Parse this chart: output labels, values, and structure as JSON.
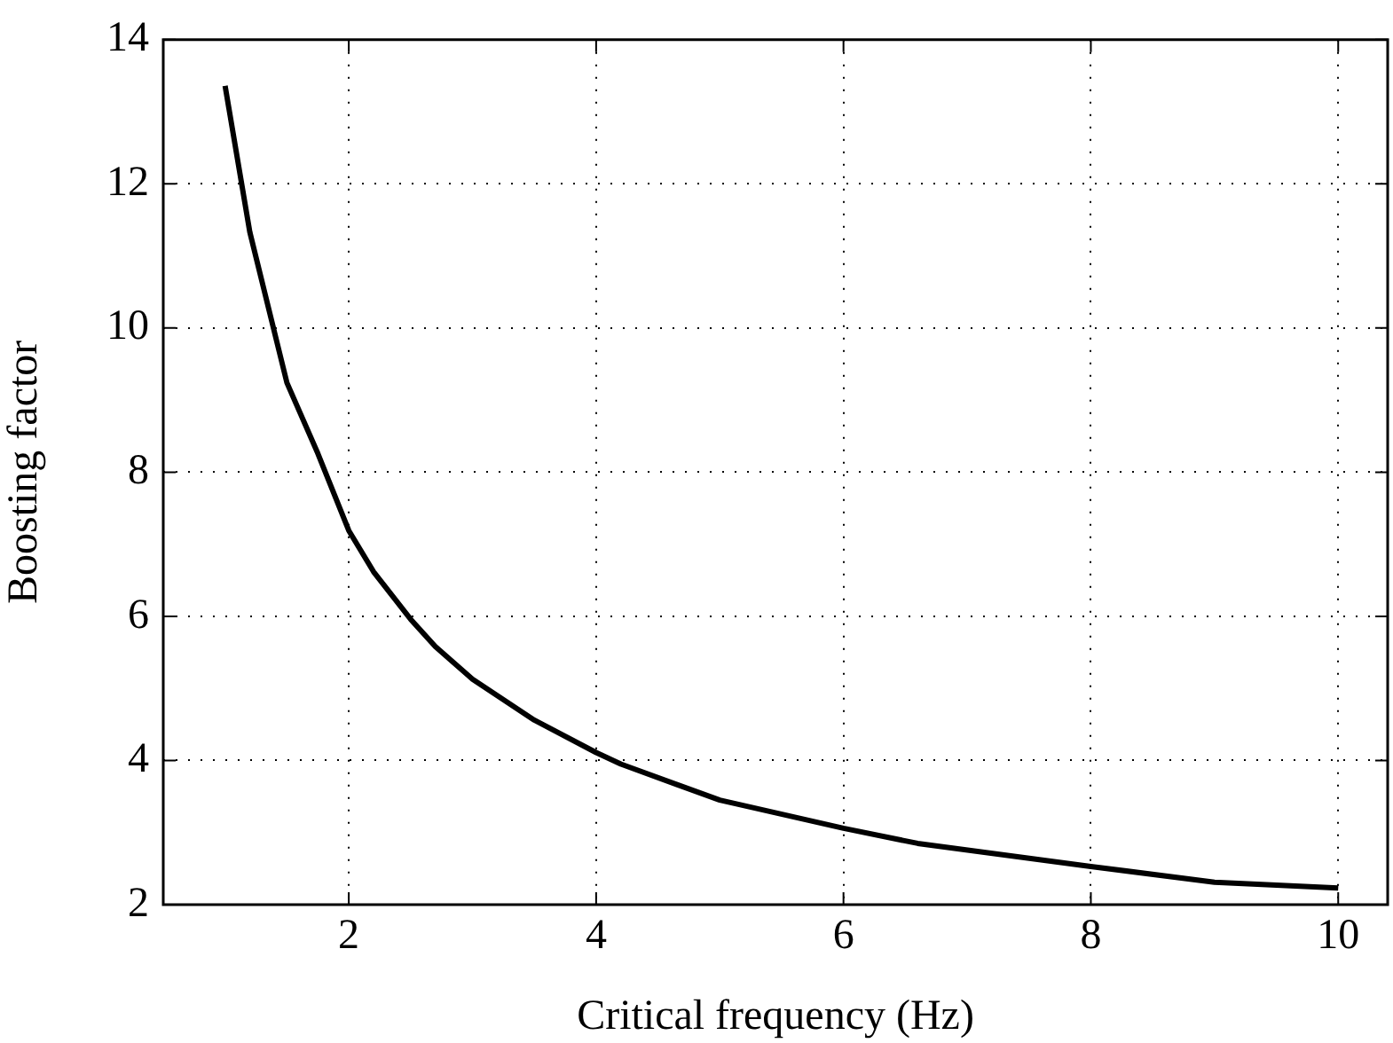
{
  "chart_data": {
    "type": "line",
    "xlabel": "Critical frequency (Hz)",
    "ylabel": "Boosting factor",
    "x": [
      1,
      1.2,
      1.5,
      1.75,
      2,
      2.2,
      2.5,
      2.7,
      3,
      3.5,
      4,
      4.2,
      5,
      6,
      6.6,
      8,
      9,
      10
    ],
    "series": [
      {
        "color": "#000000",
        "values": [
          13.36,
          11.33,
          9.24,
          8.26,
          7.19,
          6.62,
          5.96,
          5.58,
          5.13,
          4.56,
          4.11,
          3.95,
          3.45,
          3.06,
          2.85,
          2.53,
          2.31,
          2.23
        ]
      }
    ],
    "xlim": [
      0.5,
      10.4
    ],
    "xticks": [
      2,
      4,
      6,
      8,
      10
    ],
    "ylim": [
      2,
      14
    ],
    "yticks": [
      2,
      4,
      6,
      8,
      10,
      12,
      14
    ],
    "grid": true,
    "legend": false,
    "marker": "none",
    "line_style": "solid"
  }
}
